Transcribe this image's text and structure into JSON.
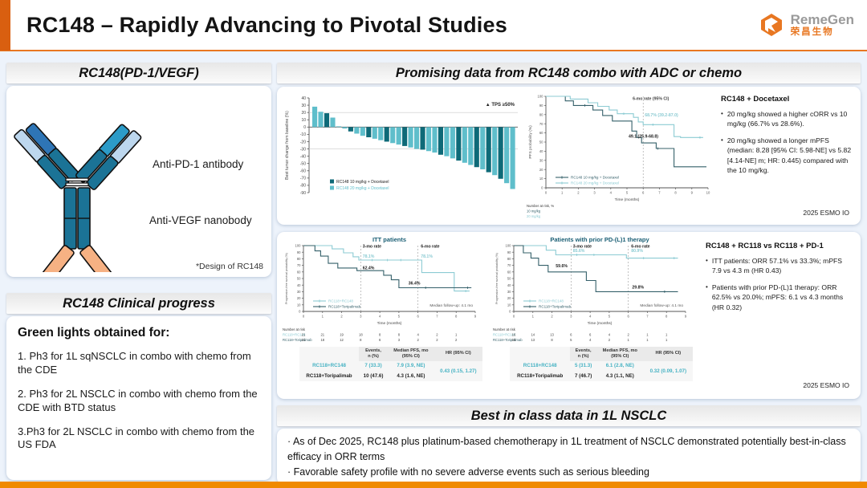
{
  "header": {
    "title": "RC148 – Rapidly Advancing to Pivotal Studies",
    "logo_en": "RemeGen",
    "logo_cn": "荣昌生物"
  },
  "misc": {
    "bullet": "•"
  },
  "left": {
    "design_header": "RC148(PD-1/VEGF)",
    "antibody": {
      "label_pd1": "Anti-PD-1 antibody",
      "label_vegf": "Anti-VEGF nanobody",
      "caption": "*Design of RC148"
    },
    "progress_header": "RC148 Clinical progress",
    "progress": {
      "heading": "Green lights obtained for:",
      "items": [
        "1. Ph3 for 1L sqNSCLC in combo with chemo from the CDE",
        "2. Ph3 for 2L NSCLC in combo with chemo from the CDE with BTD status",
        "3.Ph3 for 2L NSCLC in combo with chemo from the US FDA"
      ]
    }
  },
  "right": {
    "combo_header": "Promising data from RC148 combo with ADC or chemo",
    "docetaxel": {
      "title": "RC148 + Docetaxel",
      "bullets": [
        "20 mg/kg showed a higher cORR vs 10 mg/kg (66.7% vs 28.6%).",
        "20 mg/kg showed a longer mPFS (median: 8.28 [95% CI: 5.98-NE] vs 5.82 [4.14-NE] m; HR: 0.445) compared with the 10 mg/kg."
      ],
      "source": "2025 ESMO IO"
    },
    "rc118": {
      "title": "RC148 + RC118 vs RC118 + PD-1",
      "bullets": [
        "ITT patients: ORR 57.1% vs 33.3%; mPFS 7.9 vs 4.3 m (HR 0.43)",
        "Patients with prior PD-(L)1 therapy: ORR 62.5% vs 20.0%; mPFS: 6.1 vs 4.3 months (HR 0.32)"
      ],
      "source": "2025 ESMO IO"
    },
    "best_header": "Best in class data in 1L NSCLC",
    "best": {
      "bullets": [
        "· As of Dec 2025, RC148 plus platinum-based chemotherapy in 1L treatment of NSCLC demonstrated potentially best-in-class efficacy in ORR terms",
        "· Favorable safety profile with no severe adverse events such as serious bleeding"
      ]
    }
  },
  "colors": {
    "accent_orange": "#e87722",
    "orange_block": "#d95f10",
    "strip_orange": "#f08a00",
    "teal_dark": "#0e6a78",
    "teal_light": "#5fbecb",
    "km_dark": "#35606a",
    "km_light": "#8ccbd3",
    "chart_title": "#1a5e74"
  },
  "chart_data": [
    {
      "id": "waterfall",
      "type": "bar",
      "title": "",
      "ylabel": "Best tumor change from baseline (%)",
      "ylim": [
        -90,
        40
      ],
      "yticks": [
        40,
        30,
        20,
        10,
        0,
        -10,
        -20,
        -30,
        -40,
        -50,
        -60,
        -70,
        -80,
        -90
      ],
      "ref_lines": [
        20,
        -30
      ],
      "annotation": "▲ TPS ≥50%",
      "legend": [
        "RC148 10 mg/kg + Docetaxel",
        "RC148 20 mg/kg + Docetaxel"
      ],
      "series_colors": [
        "#0e6a78",
        "#5fbecb"
      ],
      "bars": [
        {
          "v": 28,
          "g": 1
        },
        {
          "v": 21,
          "g": 1
        },
        {
          "v": 19,
          "g": 0
        },
        {
          "v": 13,
          "g": 1
        },
        {
          "v": 1,
          "g": 1
        },
        {
          "v": -2,
          "g": 1
        },
        {
          "v": -6,
          "g": 0
        },
        {
          "v": -9,
          "g": 1
        },
        {
          "v": -12,
          "g": 1
        },
        {
          "v": -14,
          "g": 0
        },
        {
          "v": -16,
          "g": 1
        },
        {
          "v": -18,
          "g": 1
        },
        {
          "v": -20,
          "g": 0
        },
        {
          "v": -22,
          "g": 1
        },
        {
          "v": -24,
          "g": 1
        },
        {
          "v": -26,
          "g": 0
        },
        {
          "v": -28,
          "g": 1
        },
        {
          "v": -30,
          "g": 1
        },
        {
          "v": -31,
          "g": 0
        },
        {
          "v": -33,
          "g": 1
        },
        {
          "v": -35,
          "g": 1
        },
        {
          "v": -38,
          "g": 0
        },
        {
          "v": -40,
          "g": 1
        },
        {
          "v": -43,
          "g": 1
        },
        {
          "v": -46,
          "g": 0
        },
        {
          "v": -49,
          "g": 1
        },
        {
          "v": -52,
          "g": 1
        },
        {
          "v": -55,
          "g": 0
        },
        {
          "v": -58,
          "g": 1
        },
        {
          "v": -62,
          "g": 0
        },
        {
          "v": -66,
          "g": 1
        },
        {
          "v": -71,
          "g": 0
        },
        {
          "v": -77,
          "g": 1
        },
        {
          "v": -85,
          "g": 1
        }
      ]
    },
    {
      "id": "pfs",
      "type": "line",
      "ylabel": "PFS probability (%)",
      "xlabel": "Time (months)",
      "xlim": [
        0,
        10
      ],
      "ylim": [
        0,
        100
      ],
      "xticks": [
        0,
        1,
        2,
        3,
        4,
        5,
        6,
        7,
        8,
        9,
        10
      ],
      "yticks": [
        0,
        10,
        20,
        30,
        40,
        50,
        60,
        70,
        80,
        90,
        100
      ],
      "vlines": [
        6
      ],
      "annotations": [
        {
          "text": "6-mo rate (95% CI)",
          "x": 5.35,
          "y": 96,
          "color": "#444",
          "bold": true,
          "size": 5.2
        },
        {
          "text": "68.7% (39.2-87.0)",
          "x": 6.1,
          "y": 78,
          "color": "#8ccbd3",
          "bold": true,
          "size": 5.2
        },
        {
          "text": "49.1 (25.9-68.8)",
          "x": 5.1,
          "y": 55,
          "color": "#222",
          "bold": true,
          "size": 5.2
        }
      ],
      "series": [
        {
          "name": "RC148 10 mg/kg + Docetaxel",
          "color": "#35606a",
          "points": [
            [
              0,
              100
            ],
            [
              1.2,
              100
            ],
            [
              1.2,
              95
            ],
            [
              1.7,
              95
            ],
            [
              1.7,
              90
            ],
            [
              2.9,
              90
            ],
            [
              2.9,
              85
            ],
            [
              3.5,
              85
            ],
            [
              3.5,
              79
            ],
            [
              4.1,
              79
            ],
            [
              4.1,
              73
            ],
            [
              5.3,
              73
            ],
            [
              5.3,
              62
            ],
            [
              5.6,
              62
            ],
            [
              5.6,
              55
            ],
            [
              5.9,
              55
            ],
            [
              5.9,
              49
            ],
            [
              6.8,
              49
            ],
            [
              6.8,
              43
            ],
            [
              7.9,
              43
            ],
            [
              7.9,
              23
            ],
            [
              9.9,
              23
            ]
          ],
          "censors": [
            [
              2.4,
              90
            ],
            [
              6.9,
              43
            ]
          ]
        },
        {
          "name": "RC148 20 mg/kg + Docetaxel",
          "color": "#8ccbd3",
          "points": [
            [
              0,
              100
            ],
            [
              1.5,
              100
            ],
            [
              1.5,
              97
            ],
            [
              2.6,
              97
            ],
            [
              2.6,
              93
            ],
            [
              3.2,
              93
            ],
            [
              3.2,
              89
            ],
            [
              3.9,
              89
            ],
            [
              3.9,
              85
            ],
            [
              4.4,
              85
            ],
            [
              4.4,
              81
            ],
            [
              5.4,
              81
            ],
            [
              5.4,
              77
            ],
            [
              5.7,
              77
            ],
            [
              5.7,
              72
            ],
            [
              6.0,
              72
            ],
            [
              6.0,
              69
            ],
            [
              7.9,
              69
            ],
            [
              7.9,
              56
            ],
            [
              8.3,
              56
            ],
            [
              8.3,
              55
            ],
            [
              9.7,
              55
            ]
          ],
          "censors": [
            [
              4.8,
              81
            ],
            [
              6.6,
              69
            ],
            [
              9.5,
              55
            ]
          ]
        }
      ],
      "legend": true,
      "risk_label": "Number at risk, %",
      "risk_rows": [
        {
          "label": "10 mg/kg",
          "values": []
        },
        {
          "label": "20 mg/kg",
          "values": []
        }
      ]
    },
    {
      "id": "itt",
      "type": "line",
      "title": "ITT patients",
      "ylabel": "Progression-free survival probability (%)",
      "xlabel": "Time (months)",
      "xlim": [
        0,
        9
      ],
      "ylim": [
        0,
        100
      ],
      "xticks": [
        0,
        1,
        2,
        3,
        4,
        5,
        6,
        7,
        8,
        9
      ],
      "yticks": [
        0,
        10,
        20,
        30,
        40,
        50,
        60,
        70,
        80,
        90,
        100
      ],
      "vlines": [
        3,
        6
      ],
      "annotations": [
        {
          "text": "3-mo rate",
          "x": 3.1,
          "y": 97,
          "color": "#222",
          "bold": true,
          "size": 5.2
        },
        {
          "text": "6-mo rate",
          "x": 6.15,
          "y": 97,
          "color": "#222",
          "bold": true,
          "size": 5.2
        },
        {
          "text": "78.1%",
          "x": 3.1,
          "y": 82,
          "color": "#8ccbd3",
          "bold": true,
          "size": 5.2
        },
        {
          "text": "62.4%",
          "x": 3.1,
          "y": 64,
          "color": "#222",
          "bold": true,
          "size": 5.2
        },
        {
          "text": "78.1%",
          "x": 6.15,
          "y": 82,
          "color": "#8ccbd3",
          "bold": true,
          "size": 5.2
        },
        {
          "text": "36.4%",
          "x": 5.5,
          "y": 41,
          "color": "#222",
          "bold": true,
          "size": 5.2
        }
      ],
      "median_note": "Median follow-up: 4.1 mo",
      "series": [
        {
          "name": "RC118+RC148",
          "color": "#8ccbd3",
          "points": [
            [
              0,
              100
            ],
            [
              1.5,
              100
            ],
            [
              1.5,
              95
            ],
            [
              2.1,
              95
            ],
            [
              2.1,
              89
            ],
            [
              2.6,
              89
            ],
            [
              2.6,
              83
            ],
            [
              2.9,
              83
            ],
            [
              2.9,
              78
            ],
            [
              6.2,
              78
            ],
            [
              6.2,
              59
            ],
            [
              7.9,
              59
            ],
            [
              7.9,
              31
            ],
            [
              8.7,
              31
            ]
          ],
          "censors": [
            [
              3.6,
              78
            ],
            [
              4.4,
              78
            ],
            [
              5.1,
              78
            ],
            [
              8.5,
              31
            ]
          ]
        },
        {
          "name": "RC118+Toripalimab",
          "color": "#35606a",
          "points": [
            [
              0,
              100
            ],
            [
              0.6,
              100
            ],
            [
              0.6,
              92
            ],
            [
              0.9,
              92
            ],
            [
              0.9,
              84
            ],
            [
              1.3,
              84
            ],
            [
              1.3,
              73
            ],
            [
              1.8,
              73
            ],
            [
              1.8,
              66
            ],
            [
              2.8,
              66
            ],
            [
              2.8,
              62
            ],
            [
              4.2,
              62
            ],
            [
              4.2,
              55
            ],
            [
              4.6,
              55
            ],
            [
              4.6,
              48
            ],
            [
              5.0,
              48
            ],
            [
              5.0,
              36
            ],
            [
              8.8,
              36
            ]
          ],
          "censors": [
            [
              6.4,
              36
            ],
            [
              8.6,
              36
            ]
          ]
        }
      ],
      "legend": true,
      "risk_label": "Number at risk",
      "risk_rows": [
        {
          "label": "RC118+RC148",
          "values": [
            21,
            21,
            19,
            18,
            8,
            8,
            4,
            2,
            1
          ]
        },
        {
          "label": "RC118+Toripalimab",
          "values": [
            21,
            18,
            12,
            8,
            6,
            3,
            2,
            2,
            2
          ]
        }
      ],
      "table": {
        "headers": [
          "Events,\nn (%)",
          "Median PFS, mo\n(95% CI)",
          "HR (95% CI)"
        ],
        "rows": [
          {
            "name": "RC118+RC148",
            "events": "7 (33.3)",
            "mpfs": "7.9 (3.9, NE)"
          },
          {
            "name": "RC118+Toripalimab",
            "events": "10 (47.6)",
            "mpfs": "4.3 (1.6, NE)"
          }
        ],
        "hr": "0.43 (0.15, 1.27)"
      }
    },
    {
      "id": "pdl1",
      "type": "line",
      "title": "Patients with prior PD-(L)1 therapy",
      "ylabel": "Progression-free survival probability (%)",
      "xlabel": "Time (months)",
      "xlim": [
        0,
        9
      ],
      "ylim": [
        0,
        100
      ],
      "xticks": [
        0,
        1,
        2,
        3,
        4,
        5,
        6,
        7,
        8,
        9
      ],
      "yticks": [
        0,
        10,
        20,
        30,
        40,
        50,
        60,
        70,
        80,
        90,
        100
      ],
      "vlines": [
        3,
        6
      ],
      "annotations": [
        {
          "text": "3-mo rate",
          "x": 3.1,
          "y": 97,
          "color": "#222",
          "bold": true,
          "size": 5.2
        },
        {
          "text": "6-mo rate",
          "x": 6.15,
          "y": 97,
          "color": "#222",
          "bold": true,
          "size": 5.2
        },
        {
          "text": "85.6%",
          "x": 3.1,
          "y": 90,
          "color": "#8ccbd3",
          "bold": true,
          "size": 5.2
        },
        {
          "text": "59.6%",
          "x": 2.2,
          "y": 67,
          "color": "#222",
          "bold": true,
          "size": 5.2
        },
        {
          "text": "80.9%",
          "x": 6.15,
          "y": 90,
          "color": "#8ccbd3",
          "bold": true,
          "size": 5.2
        },
        {
          "text": "29.8%",
          "x": 6.2,
          "y": 35,
          "color": "#222",
          "bold": true,
          "size": 5.2
        }
      ],
      "median_note": "Median follow-up: 4.1 mo",
      "series": [
        {
          "name": "RC118+RC148",
          "color": "#8ccbd3",
          "points": [
            [
              0,
              100
            ],
            [
              1.7,
              100
            ],
            [
              1.7,
              93
            ],
            [
              2.2,
              93
            ],
            [
              2.2,
              86
            ],
            [
              5.9,
              86
            ],
            [
              5.9,
              81
            ],
            [
              8.6,
              81
            ]
          ],
          "censors": [
            [
              3.3,
              86
            ],
            [
              4.2,
              86
            ],
            [
              6.8,
              81
            ],
            [
              8.4,
              81
            ]
          ]
        },
        {
          "name": "RC118+Toripalimab",
          "color": "#35606a",
          "points": [
            [
              0,
              100
            ],
            [
              0.5,
              100
            ],
            [
              0.5,
              89
            ],
            [
              0.9,
              89
            ],
            [
              0.9,
              81
            ],
            [
              1.3,
              81
            ],
            [
              1.3,
              70
            ],
            [
              1.8,
              70
            ],
            [
              1.8,
              60
            ],
            [
              3.8,
              60
            ],
            [
              3.8,
              47
            ],
            [
              4.3,
              47
            ],
            [
              4.3,
              30
            ],
            [
              8.6,
              30
            ]
          ],
          "censors": [
            [
              7.9,
              30
            ]
          ]
        }
      ],
      "legend": true,
      "risk_label": "Number at risk",
      "risk_rows": [
        {
          "label": "RC118+RC148",
          "values": [
            16,
            14,
            13,
            6,
            6,
            4,
            2,
            1,
            1
          ]
        },
        {
          "label": "RC118+Toripalimab",
          "values": [
            15,
            13,
            8,
            5,
            4,
            2,
            1,
            1,
            1
          ]
        }
      ],
      "table": {
        "headers": [
          "Events,\nn (%)",
          "Median PFS, mo\n(95% CI)",
          "HR (95% CI)"
        ],
        "rows": [
          {
            "name": "RC118+RC148",
            "events": "5 (31.3)",
            "mpfs": "6.1 (2.8, NE)"
          },
          {
            "name": "RC118+Toripalimab",
            "events": "7 (46.7)",
            "mpfs": "4.3 (1.1, NE)"
          }
        ],
        "hr": "0.32 (0.09, 1.07)"
      }
    }
  ]
}
